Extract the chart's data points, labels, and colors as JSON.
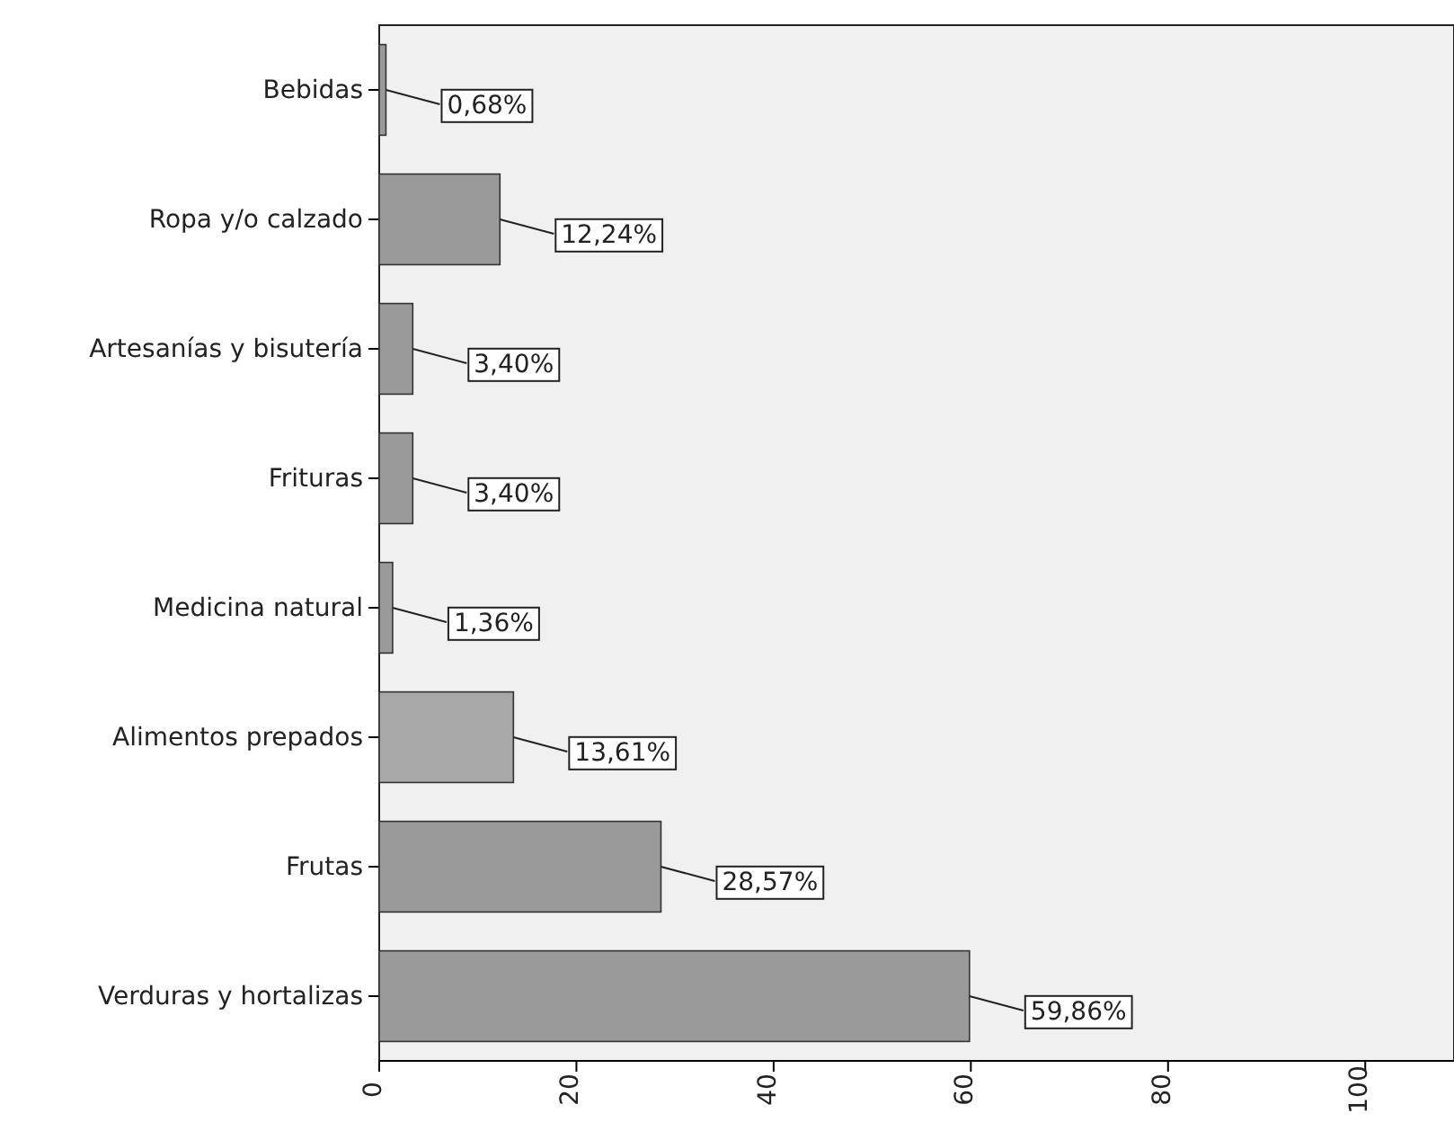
{
  "chart_data": {
    "type": "bar",
    "orientation": "horizontal",
    "categories": [
      "Bebidas",
      "Ropa y/o calzado",
      "Artesanías y bisutería",
      "Frituras",
      "Medicina natural",
      "Alimentos prepados",
      "Frutas",
      "Verduras y hortalizas"
    ],
    "values": [
      0.68,
      12.24,
      3.4,
      3.4,
      1.36,
      13.61,
      28.57,
      59.86
    ],
    "colors": [
      "#9a9a9a",
      "#9a9a9a",
      "#9a9a9a",
      "#9a9a9a",
      "#9a9a9a",
      "#a8a8a8",
      "#9a9a9a",
      "#9a9a9a"
    ],
    "value_labels": [
      "0,68%",
      "12,24%",
      "3,40%",
      "3,40%",
      "1,36%",
      "13,61%",
      "28,57%",
      "59,86%"
    ],
    "xlim": [
      0,
      109
    ],
    "xticks": [
      0,
      20,
      40,
      60,
      80,
      100
    ],
    "grid": false
  }
}
